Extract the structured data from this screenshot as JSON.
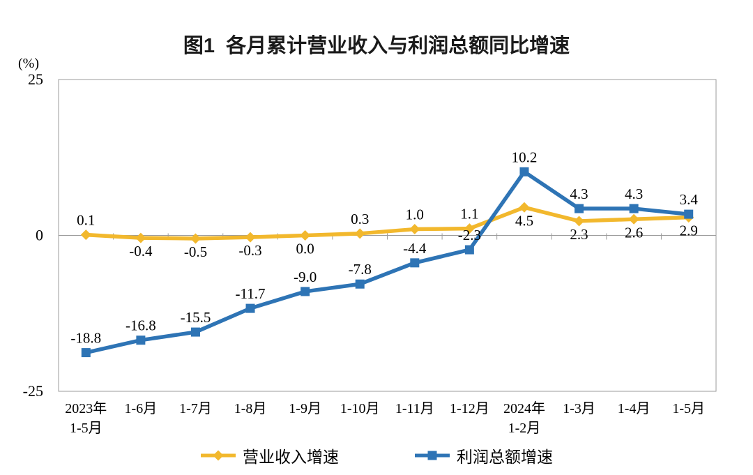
{
  "chart_data": {
    "type": "line",
    "title": "图1  各月累计营业收入与利润总额同比增速",
    "unit": "(%)",
    "categories": [
      "2023年\n1-5月",
      "1-6月",
      "1-7月",
      "1-8月",
      "1-9月",
      "1-10月",
      "1-11月",
      "1-12月",
      "2024年\n1-2月",
      "1-3月",
      "1-4月",
      "1-5月"
    ],
    "y_axis": {
      "min": -25,
      "max": 25,
      "ticks": [
        25,
        0,
        -25
      ]
    },
    "grid": false,
    "legend_position": "bottom",
    "series": [
      {
        "name": "营业收入增速",
        "color": "#F2B82D",
        "marker": "diamond",
        "values": [
          0.1,
          -0.4,
          -0.5,
          -0.3,
          0.0,
          0.3,
          1.0,
          1.1,
          4.5,
          2.3,
          2.6,
          2.9
        ],
        "labels": [
          "0.1",
          "-0.4",
          "-0.5",
          "-0.3",
          "0.0",
          "0.3",
          "1.0",
          "1.1",
          "4.5",
          "2.3",
          "2.6",
          "2.9"
        ],
        "label_side": [
          "above",
          "below",
          "below",
          "below",
          "below",
          "above",
          "above",
          "above",
          "below",
          "below",
          "below",
          "below"
        ]
      },
      {
        "name": "利润总额增速",
        "color": "#2E74B5",
        "marker": "square",
        "values": [
          -18.8,
          -16.8,
          -15.5,
          -11.7,
          -9.0,
          -7.8,
          -4.4,
          -2.3,
          10.2,
          4.3,
          4.3,
          3.4
        ],
        "labels": [
          "-18.8",
          "-16.8",
          "-15.5",
          "-11.7",
          "-9.0",
          "-7.8",
          "-4.4",
          "-2.3",
          "10.2",
          "4.3",
          "4.3",
          "3.4"
        ],
        "label_side": [
          "above",
          "above",
          "above",
          "above",
          "above",
          "above",
          "above",
          "above",
          "above",
          "above",
          "above",
          "above"
        ]
      }
    ]
  }
}
